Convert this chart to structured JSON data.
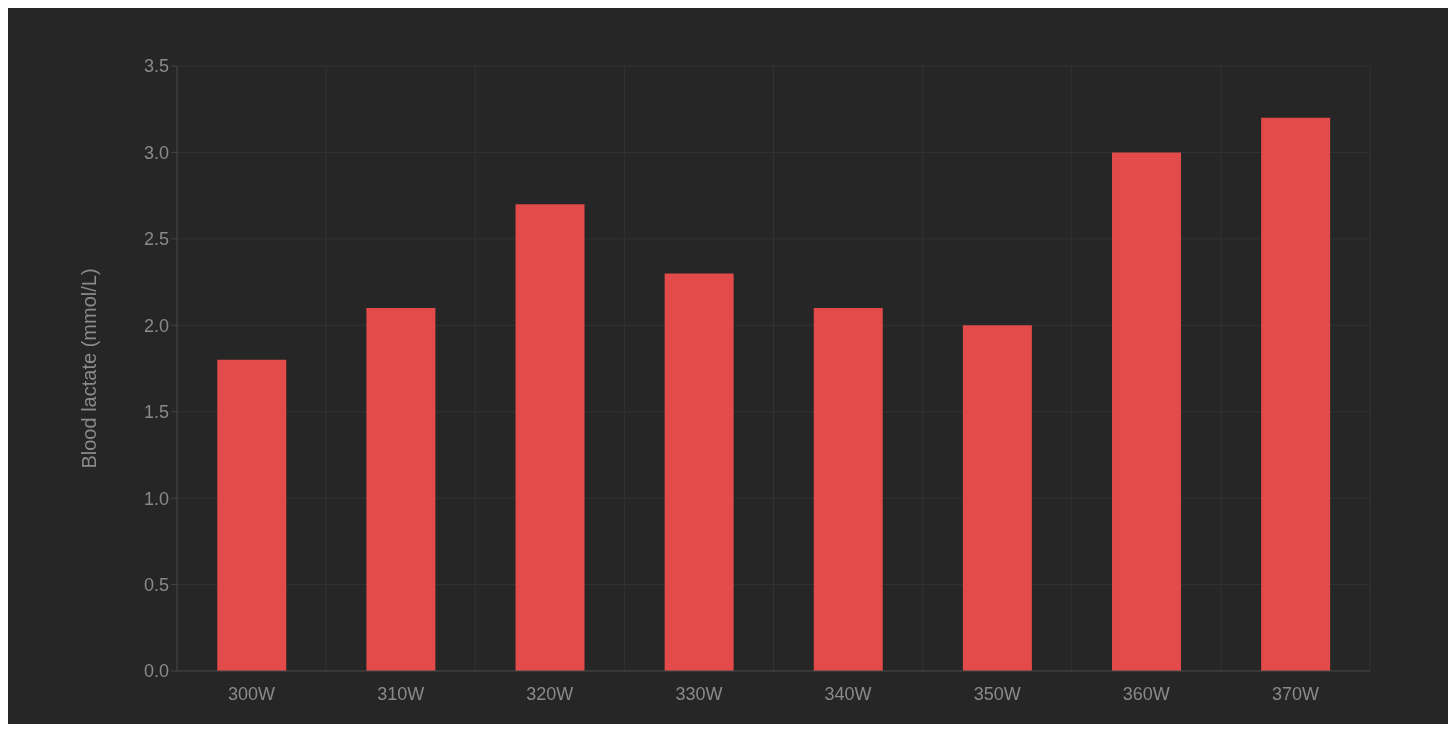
{
  "chart_data": {
    "type": "bar",
    "ylabel": "Blood lactate (mmol/L)",
    "categories": [
      "300W",
      "310W",
      "320W",
      "330W",
      "340W",
      "350W",
      "360W",
      "370W"
    ],
    "values": [
      1.8,
      2.1,
      2.7,
      2.3,
      2.1,
      2.0,
      3.0,
      3.2
    ],
    "color": "#e34a4a",
    "ylim": [
      0,
      3.5
    ],
    "yticks": [
      {
        "value": 0,
        "label": "0.0"
      },
      0.5,
      {
        "value": 1,
        "label": "1.0"
      },
      1.5,
      {
        "value": 2,
        "label": "2.0"
      },
      2.5,
      {
        "value": 3,
        "label": "3.0"
      },
      3.5
    ],
    "grid": true,
    "legend": false
  }
}
